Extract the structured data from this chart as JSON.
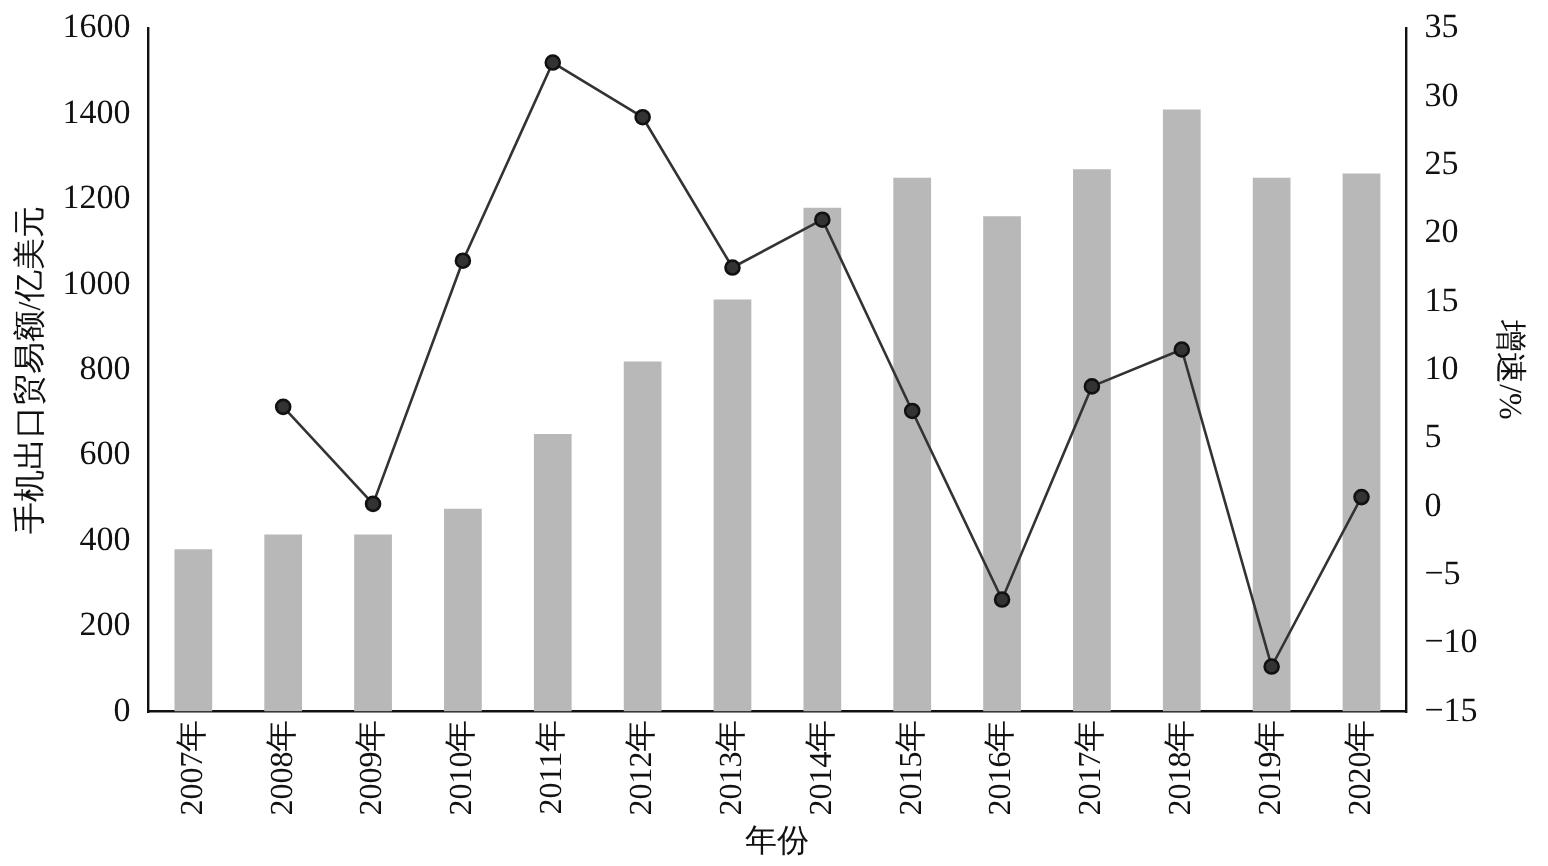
{
  "chart_data": {
    "type": "bar",
    "xlabel": "年份",
    "ylabel": "手机出口贸易额/亿美元",
    "y2label": "增速/%",
    "categories": [
      "2007年",
      "2008年",
      "2009年",
      "2010年",
      "2011年",
      "2012年",
      "2013年",
      "2014年",
      "2015年",
      "2016年",
      "2017年",
      "2018年",
      "2019年",
      "2020年"
    ],
    "series": [
      {
        "color": "#b8b8b8",
        "values": [
          380,
          415,
          415,
          475,
          650,
          820,
          965,
          1180,
          1250,
          1160,
          1270,
          1410,
          1250,
          1260
        ]
      },
      {
        "type": "line",
        "axis": "y2",
        "color": "#333333",
        "values": [
          null,
          7.3,
          0.2,
          18,
          32.5,
          28.5,
          17.5,
          21,
          7,
          -6.8,
          8.8,
          11.5,
          -11.7,
          0.7
        ]
      }
    ],
    "ylim": [
      0,
      1600
    ],
    "yticks": [
      0,
      200,
      400,
      600,
      800,
      1000,
      1200,
      1400,
      1600
    ],
    "y2lim": [
      -15,
      35
    ],
    "y2ticks": [
      {
        "value": -15,
        "label": "−15"
      },
      {
        "value": -10,
        "label": "−10"
      },
      {
        "value": -5,
        "label": "−5"
      },
      0,
      5,
      10,
      15,
      20,
      25,
      30,
      35
    ],
    "grid": false,
    "legend": false,
    "marker": "circle",
    "line_style": "solid"
  }
}
